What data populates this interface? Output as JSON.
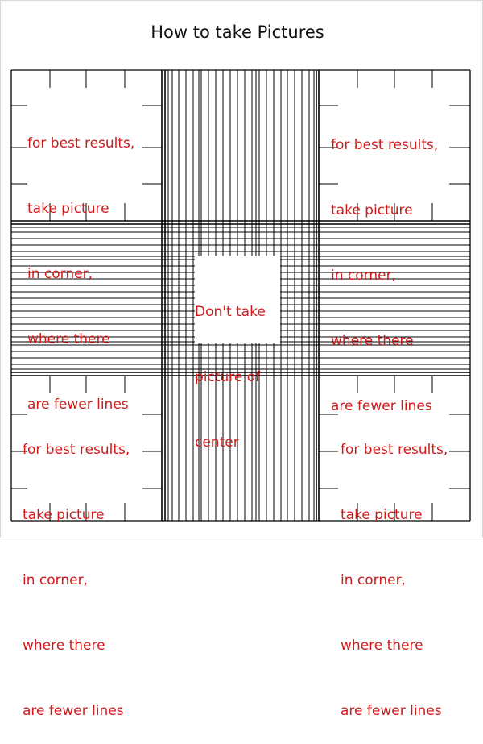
{
  "title": "How to take Pictures",
  "corner_note": {
    "lines": [
      "for best results,",
      "take picture",
      "in corner,",
      "where there",
      "are fewer lines"
    ]
  },
  "center_note": {
    "lines": [
      "Don't take",
      "picture of",
      "center"
    ]
  },
  "colors": {
    "note_text": "#d11b1b",
    "grid_line": "#000000"
  }
}
